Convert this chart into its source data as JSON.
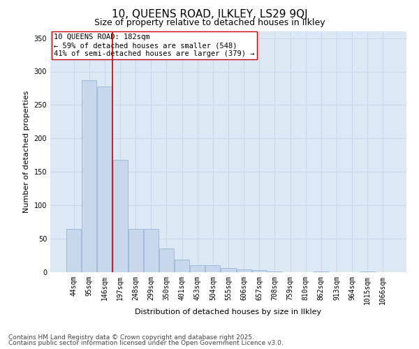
{
  "title": "10, QUEENS ROAD, ILKLEY, LS29 9QJ",
  "subtitle": "Size of property relative to detached houses in Ilkley",
  "xlabel": "Distribution of detached houses by size in Ilkley",
  "ylabel": "Number of detached properties",
  "categories": [
    "44sqm",
    "95sqm",
    "146sqm",
    "197sqm",
    "248sqm",
    "299sqm",
    "350sqm",
    "401sqm",
    "453sqm",
    "504sqm",
    "555sqm",
    "606sqm",
    "657sqm",
    "708sqm",
    "759sqm",
    "810sqm",
    "862sqm",
    "913sqm",
    "964sqm",
    "1015sqm",
    "1066sqm"
  ],
  "values": [
    65,
    287,
    278,
    168,
    65,
    65,
    35,
    19,
    10,
    10,
    6,
    4,
    3,
    1,
    0,
    0,
    1,
    0,
    0,
    1,
    0
  ],
  "bar_color": "#c8d8ec",
  "bar_edge_color": "#8aaed0",
  "vline_x": 2.5,
  "vline_color": "#cc0000",
  "annotation_text": "10 QUEENS ROAD: 182sqm\n← 59% of detached houses are smaller (548)\n41% of semi-detached houses are larger (379) →",
  "annotation_box_color": "#ffffff",
  "annotation_box_edge": "#cc0000",
  "ylim": [
    0,
    360
  ],
  "yticks": [
    0,
    50,
    100,
    150,
    200,
    250,
    300,
    350
  ],
  "grid_color": "#c8d4e8",
  "background_color": "#dce8f4",
  "footer_line1": "Contains HM Land Registry data © Crown copyright and database right 2025.",
  "footer_line2": "Contains public sector information licensed under the Open Government Licence v3.0.",
  "title_fontsize": 11,
  "subtitle_fontsize": 9,
  "axis_label_fontsize": 8,
  "tick_fontsize": 7,
  "annotation_fontsize": 7.5,
  "footer_fontsize": 6.5
}
